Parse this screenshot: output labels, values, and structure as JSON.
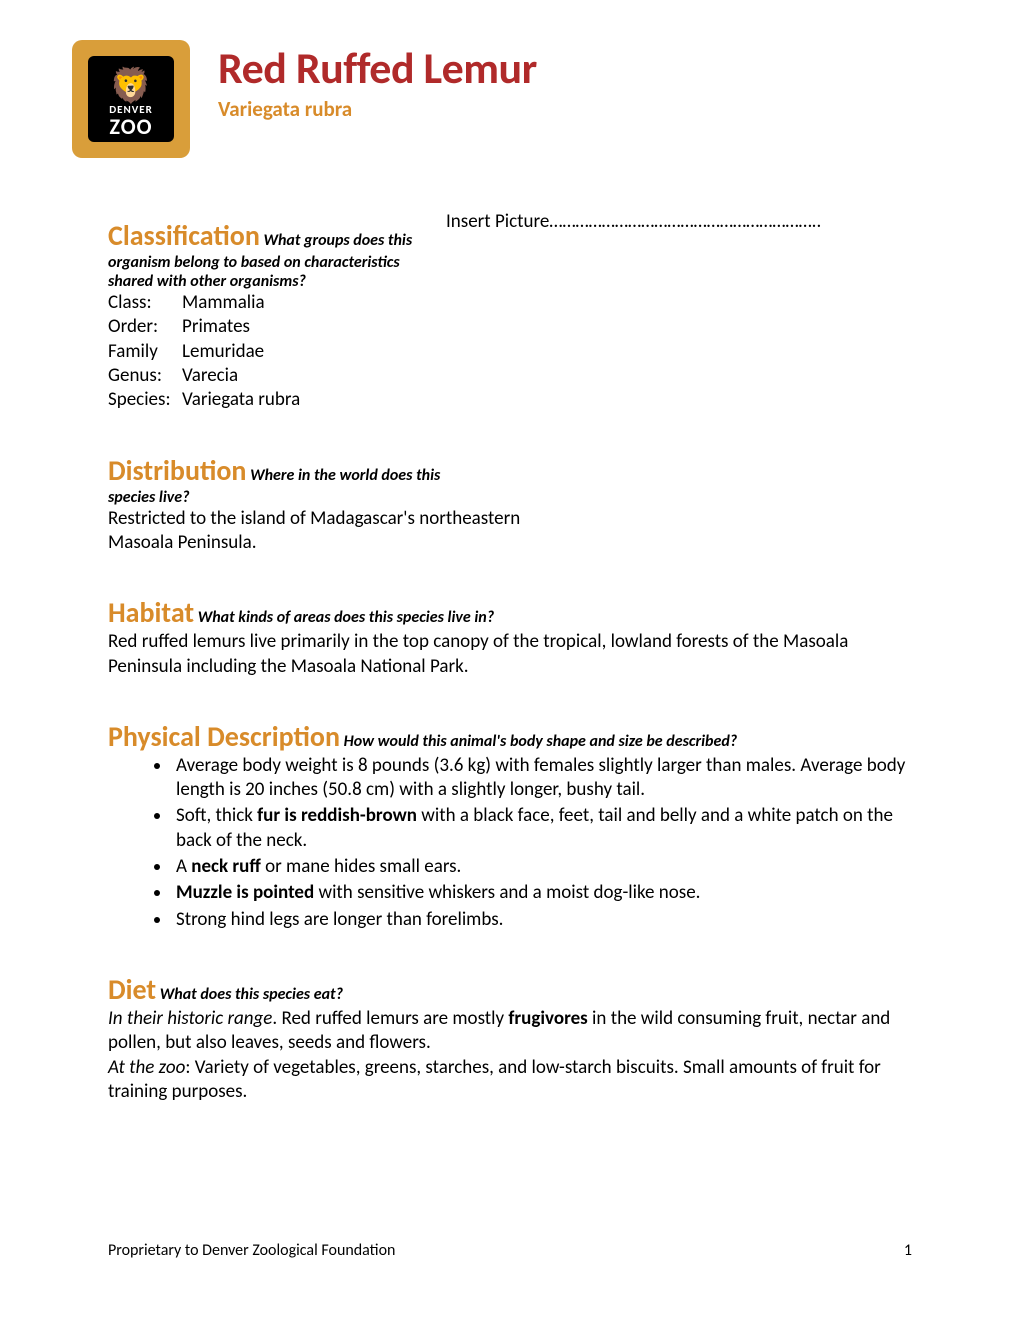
{
  "colors": {
    "title_red": "#b02a2a",
    "heading_orange": "#d88b2a",
    "logo_bg": "#d99e3a",
    "text": "#000000",
    "background": "#ffffff"
  },
  "fonts": {
    "title_size": 44,
    "heading_size": 28,
    "body_size": 19,
    "sub_size": 16
  },
  "logo": {
    "line1": "DENVER",
    "line2": "ZOO"
  },
  "title": "Red Ruffed Lemur",
  "scientific_name": "Variegata rubra",
  "insert_picture_label": "Insert Picture……………………………………………………..",
  "sections": {
    "classification": {
      "heading": "Classification",
      "sub": "What groups does this organism belong to based on characteristics shared with other organisms?",
      "rows": [
        {
          "label": "Class:",
          "value": "Mammalia"
        },
        {
          "label": "Order:",
          "value": "Primates"
        },
        {
          "label": "Family",
          "value": "Lemuridae"
        },
        {
          "label": "Genus:",
          "value": "Varecia"
        },
        {
          "label": "Species:",
          "value": "Variegata rubra"
        }
      ]
    },
    "distribution": {
      "heading": "Distribution",
      "sub": "Where in the world does this species live?",
      "body": "Restricted to the island of Madagascar's northeastern Masoala Peninsula."
    },
    "habitat": {
      "heading": "Habitat",
      "sub": "What kinds of areas does this species live in?",
      "body": "Red ruffed lemurs live primarily in the top canopy of the tropical, lowland forests of the Masoala Peninsula including the Masoala National Park."
    },
    "physical": {
      "heading": "Physical Description",
      "sub": "How would this animal's body shape and size be described?",
      "bullets": [
        {
          "pre": "Average body weight is 8 pounds (3.6 kg) with females slightly larger than males.  Average body length is 20 inches (50.8 cm) with a slightly longer, bushy tail.",
          "bold": "",
          "post": ""
        },
        {
          "pre": "Soft, thick ",
          "bold": "fur is reddish-brown",
          "post": " with a black face, feet, tail and belly and a white patch on the back of the neck."
        },
        {
          "pre": "A ",
          "bold": "neck ruff",
          "post": " or mane hides small ears."
        },
        {
          "pre": "",
          "bold": "Muzzle is pointed",
          "post": " with sensitive whiskers and a moist dog-like nose."
        },
        {
          "pre": "Strong hind legs are longer than forelimbs.",
          "bold": "",
          "post": ""
        }
      ]
    },
    "diet": {
      "heading": "Diet",
      "sub": "What does this species eat?",
      "range_label": "In their historic range",
      "range_pre": ".   Red ruffed lemurs are mostly ",
      "range_bold": "frugivores",
      "range_post": " in the wild consuming fruit, nectar and pollen, but also leaves, seeds and flowers.",
      "zoo_label": "At the zoo",
      "zoo_body": ":  Variety of vegetables, greens, starches, and low-starch biscuits.  Small amounts of fruit for training purposes."
    }
  },
  "footer": {
    "left": "Proprietary to Denver Zoological Foundation",
    "page": "1"
  }
}
